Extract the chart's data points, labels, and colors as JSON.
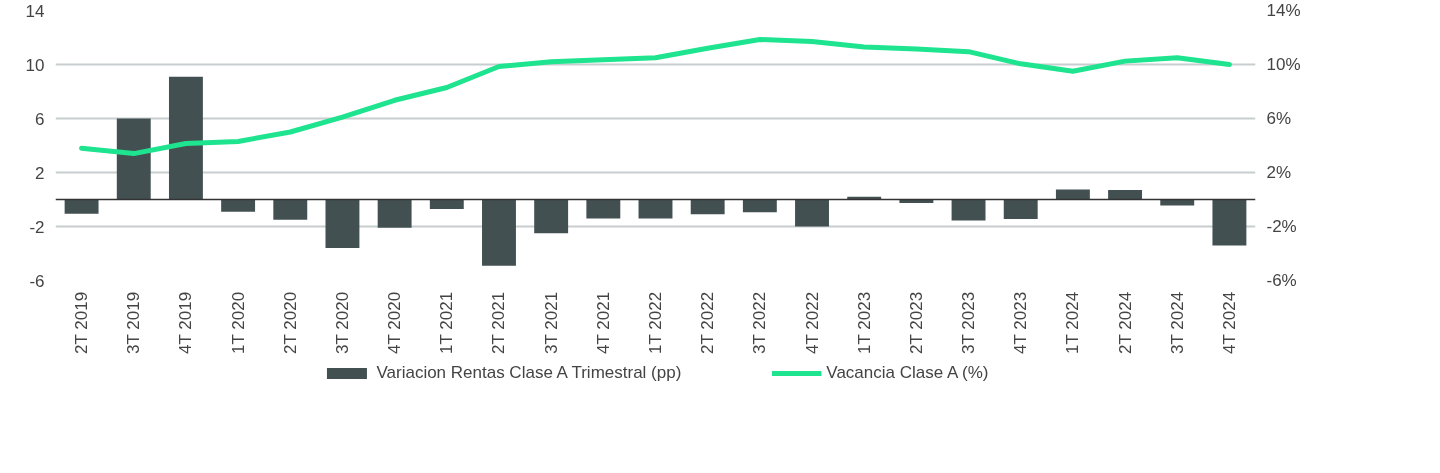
{
  "chart_data": {
    "type": "bar",
    "categories": [
      "2T 2019",
      "3T 2019",
      "4T 2019",
      "1T 2020",
      "2T 2020",
      "3T 2020",
      "4T 2020",
      "1T 2021",
      "2T 2021",
      "3T 2021",
      "4T 2021",
      "1T 2022",
      "2T 2022",
      "3T 2022",
      "4T 2022",
      "1T 2023",
      "2T 2023",
      "3T 2023",
      "4T 2023",
      "1T 2024",
      "2T 2024",
      "3T 2024",
      "4T 2024"
    ],
    "series": [
      {
        "name": "Variacion Rentas Clase A Trimestral (pp)",
        "color": "#435052",
        "values": [
          -1.05,
          6.0,
          9.1,
          -0.9,
          -1.5,
          -3.6,
          -2.1,
          -0.7,
          -4.9,
          -2.5,
          -1.4,
          -1.4,
          -1.1,
          -0.95,
          -2.0,
          0.2,
          -0.25,
          -1.55,
          -1.45,
          0.75,
          0.7,
          -0.45,
          -3.4
        ]
      },
      {
        "name": "Vacancia Clase A (%)",
        "type": "line",
        "axis": "y2",
        "color": "#1ee38f",
        "values": [
          3.8,
          3.4,
          4.15,
          4.3,
          5.0,
          6.1,
          7.35,
          8.3,
          9.85,
          10.2,
          10.35,
          10.5,
          11.2,
          11.85,
          11.7,
          11.3,
          11.15,
          10.95,
          10.05,
          9.5,
          10.25,
          10.5,
          10.0
        ]
      }
    ],
    "ylim": [
      -6,
      14
    ],
    "yticks": [
      -6,
      -2,
      2,
      6,
      10,
      14
    ],
    "y2lim": [
      -6,
      14
    ],
    "y2ticks": [
      {
        "value": -6,
        "label": "-6%"
      },
      {
        "value": -2,
        "label": "-2%"
      },
      {
        "value": 2,
        "label": "2%"
      },
      {
        "value": 6,
        "label": "6%"
      },
      {
        "value": 10,
        "label": "10%"
      },
      {
        "value": 14,
        "label": "14%"
      }
    ],
    "ref_lines": [
      {
        "axis": "y",
        "value": 0,
        "color": "#333333"
      }
    ],
    "grid": "y",
    "legend": "bottom",
    "marker": "none",
    "line_style": "solid"
  }
}
